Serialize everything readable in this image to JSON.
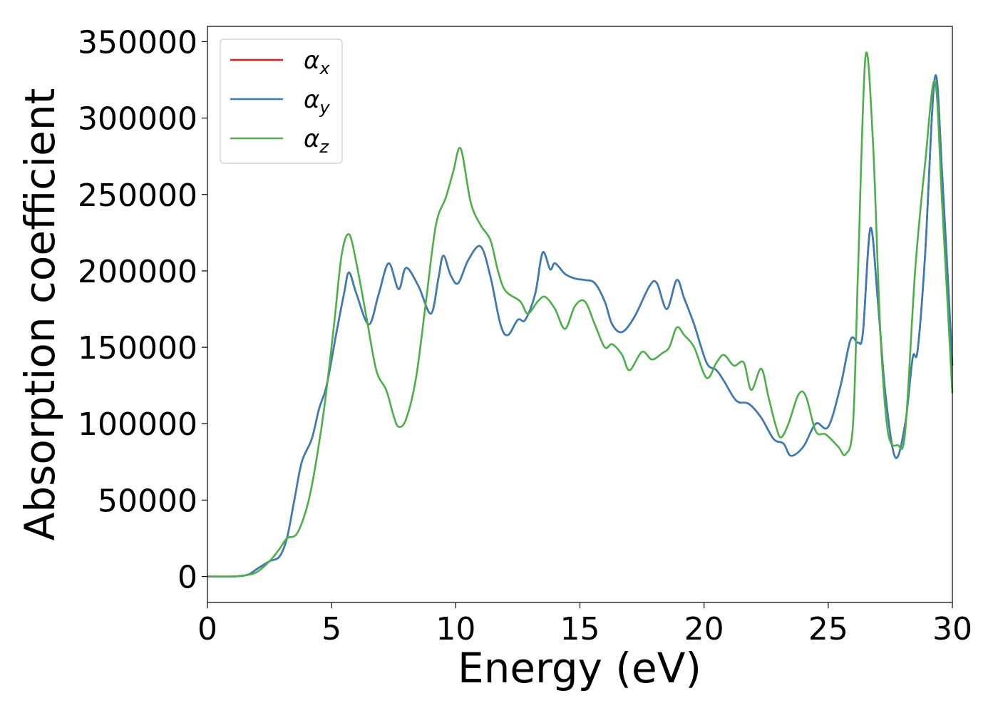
{
  "chart_data": {
    "type": "line",
    "xlabel": "Energy (eV)",
    "ylabel": "Absorption coefficient",
    "xlim": [
      0,
      30
    ],
    "ylim": [
      -17000,
      360000
    ],
    "xticks": [
      0,
      5,
      10,
      15,
      20,
      25,
      30
    ],
    "xtick_labels": [
      "0",
      "5",
      "10",
      "15",
      "20",
      "25",
      "30"
    ],
    "yticks": [
      0,
      50000,
      100000,
      150000,
      200000,
      250000,
      300000,
      350000
    ],
    "ytick_labels": [
      "0",
      "50000",
      "100000",
      "150000",
      "200000",
      "250000",
      "300000",
      "350000"
    ],
    "grid": false,
    "legend_position": "top-left",
    "series": [
      {
        "name": "α",
        "subscript": "x",
        "color": "#e41a1c",
        "points": [
          [
            0,
            0
          ],
          [
            1,
            0
          ],
          [
            1.6,
            1000
          ],
          [
            2,
            5000
          ],
          [
            2.5,
            10000
          ],
          [
            2.9,
            13000
          ],
          [
            3.2,
            25000
          ],
          [
            3.5,
            50000
          ],
          [
            3.8,
            75000
          ],
          [
            4.2,
            90000
          ],
          [
            4.5,
            110000
          ],
          [
            4.8,
            125000
          ],
          [
            5.2,
            160000
          ],
          [
            5.5,
            185000
          ],
          [
            5.7,
            199000
          ],
          [
            6,
            185000
          ],
          [
            6.5,
            165000
          ],
          [
            6.9,
            185000
          ],
          [
            7.3,
            205000
          ],
          [
            7.7,
            188000
          ],
          [
            8,
            202000
          ],
          [
            8.5,
            190000
          ],
          [
            9,
            172000
          ],
          [
            9.3,
            195000
          ],
          [
            9.5,
            210000
          ],
          [
            9.8,
            197000
          ],
          [
            10.1,
            192000
          ],
          [
            10.5,
            207000
          ],
          [
            11,
            216000
          ],
          [
            11.4,
            196000
          ],
          [
            11.8,
            165000
          ],
          [
            12.1,
            158000
          ],
          [
            12.5,
            168000
          ],
          [
            12.8,
            168000
          ],
          [
            13.2,
            185000
          ],
          [
            13.5,
            212000
          ],
          [
            13.8,
            201000
          ],
          [
            14,
            205000
          ],
          [
            14.4,
            198000
          ],
          [
            14.8,
            195000
          ],
          [
            15.2,
            194000
          ],
          [
            15.6,
            192000
          ],
          [
            16,
            180000
          ],
          [
            16.3,
            165000
          ],
          [
            16.7,
            160000
          ],
          [
            17.2,
            170000
          ],
          [
            17.8,
            190000
          ],
          [
            18.1,
            192000
          ],
          [
            18.5,
            175000
          ],
          [
            18.9,
            194000
          ],
          [
            19.2,
            182000
          ],
          [
            19.6,
            165000
          ],
          [
            20.1,
            140000
          ],
          [
            20.5,
            135000
          ],
          [
            20.8,
            128000
          ],
          [
            21.3,
            115000
          ],
          [
            21.8,
            113000
          ],
          [
            22.3,
            104000
          ],
          [
            22.8,
            90000
          ],
          [
            23.2,
            87000
          ],
          [
            23.5,
            79000
          ],
          [
            24,
            85000
          ],
          [
            24.5,
            100000
          ],
          [
            25,
            98000
          ],
          [
            25.5,
            125000
          ],
          [
            25.9,
            155000
          ],
          [
            26.2,
            153000
          ],
          [
            26.4,
            160000
          ],
          [
            26.7,
            228000
          ],
          [
            27,
            180000
          ],
          [
            27.3,
            120000
          ],
          [
            27.7,
            78000
          ],
          [
            28.1,
            100000
          ],
          [
            28.4,
            143000
          ],
          [
            28.6,
            148000
          ],
          [
            28.9,
            210000
          ],
          [
            29.3,
            327000
          ],
          [
            29.6,
            260000
          ],
          [
            30,
            138000
          ]
        ]
      },
      {
        "name": "α",
        "subscript": "y",
        "color": "#377eb8",
        "points": [
          [
            0,
            0
          ],
          [
            1,
            0
          ],
          [
            1.6,
            1000
          ],
          [
            2,
            5000
          ],
          [
            2.5,
            10000
          ],
          [
            2.9,
            13000
          ],
          [
            3.2,
            25000
          ],
          [
            3.5,
            50000
          ],
          [
            3.8,
            75000
          ],
          [
            4.2,
            90000
          ],
          [
            4.5,
            110000
          ],
          [
            4.8,
            125000
          ],
          [
            5.2,
            160000
          ],
          [
            5.5,
            185000
          ],
          [
            5.7,
            199000
          ],
          [
            6,
            185000
          ],
          [
            6.5,
            165000
          ],
          [
            6.9,
            185000
          ],
          [
            7.3,
            205000
          ],
          [
            7.7,
            188000
          ],
          [
            8,
            202000
          ],
          [
            8.5,
            190000
          ],
          [
            9,
            172000
          ],
          [
            9.3,
            195000
          ],
          [
            9.5,
            210000
          ],
          [
            9.8,
            197000
          ],
          [
            10.1,
            192000
          ],
          [
            10.5,
            207000
          ],
          [
            11,
            216000
          ],
          [
            11.4,
            196000
          ],
          [
            11.8,
            165000
          ],
          [
            12.1,
            158000
          ],
          [
            12.5,
            168000
          ],
          [
            12.8,
            168000
          ],
          [
            13.2,
            185000
          ],
          [
            13.5,
            212000
          ],
          [
            13.8,
            201000
          ],
          [
            14,
            205000
          ],
          [
            14.4,
            198000
          ],
          [
            14.8,
            195000
          ],
          [
            15.2,
            194000
          ],
          [
            15.6,
            192000
          ],
          [
            16,
            180000
          ],
          [
            16.3,
            165000
          ],
          [
            16.7,
            160000
          ],
          [
            17.2,
            170000
          ],
          [
            17.8,
            190000
          ],
          [
            18.1,
            192000
          ],
          [
            18.5,
            175000
          ],
          [
            18.9,
            194000
          ],
          [
            19.2,
            182000
          ],
          [
            19.6,
            165000
          ],
          [
            20.1,
            140000
          ],
          [
            20.5,
            135000
          ],
          [
            20.8,
            128000
          ],
          [
            21.3,
            115000
          ],
          [
            21.8,
            113000
          ],
          [
            22.3,
            104000
          ],
          [
            22.8,
            90000
          ],
          [
            23.2,
            87000
          ],
          [
            23.5,
            79000
          ],
          [
            24,
            85000
          ],
          [
            24.5,
            100000
          ],
          [
            25,
            98000
          ],
          [
            25.5,
            125000
          ],
          [
            25.9,
            155000
          ],
          [
            26.2,
            153000
          ],
          [
            26.4,
            160000
          ],
          [
            26.7,
            228000
          ],
          [
            27,
            180000
          ],
          [
            27.3,
            120000
          ],
          [
            27.7,
            78000
          ],
          [
            28.1,
            100000
          ],
          [
            28.4,
            143000
          ],
          [
            28.6,
            148000
          ],
          [
            28.9,
            210000
          ],
          [
            29.3,
            327000
          ],
          [
            29.6,
            260000
          ],
          [
            30,
            138000
          ]
        ]
      },
      {
        "name": "α",
        "subscript": "z",
        "color": "#4daf4a",
        "points": [
          [
            0,
            0
          ],
          [
            1,
            0
          ],
          [
            1.6,
            1000
          ],
          [
            2,
            3000
          ],
          [
            2.5,
            10000
          ],
          [
            2.9,
            18000
          ],
          [
            3.2,
            25000
          ],
          [
            3.6,
            28000
          ],
          [
            4,
            45000
          ],
          [
            4.3,
            68000
          ],
          [
            4.7,
            110000
          ],
          [
            5.1,
            165000
          ],
          [
            5.4,
            210000
          ],
          [
            5.7,
            224000
          ],
          [
            6,
            205000
          ],
          [
            6.4,
            170000
          ],
          [
            6.8,
            135000
          ],
          [
            7.2,
            122000
          ],
          [
            7.5,
            105000
          ],
          [
            7.7,
            98000
          ],
          [
            8,
            103000
          ],
          [
            8.4,
            130000
          ],
          [
            8.8,
            180000
          ],
          [
            9.2,
            230000
          ],
          [
            9.6,
            248000
          ],
          [
            9.9,
            265000
          ],
          [
            10.2,
            280000
          ],
          [
            10.6,
            245000
          ],
          [
            11,
            230000
          ],
          [
            11.4,
            220000
          ],
          [
            11.7,
            200000
          ],
          [
            12,
            187000
          ],
          [
            12.6,
            180000
          ],
          [
            12.9,
            172000
          ],
          [
            13.3,
            180000
          ],
          [
            13.6,
            183000
          ],
          [
            14,
            175000
          ],
          [
            14.4,
            162000
          ],
          [
            14.8,
            177000
          ],
          [
            15.2,
            180000
          ],
          [
            15.6,
            165000
          ],
          [
            16,
            150000
          ],
          [
            16.3,
            152000
          ],
          [
            16.7,
            145000
          ],
          [
            17,
            135000
          ],
          [
            17.5,
            147000
          ],
          [
            17.9,
            142000
          ],
          [
            18.3,
            146000
          ],
          [
            18.6,
            150000
          ],
          [
            18.9,
            163000
          ],
          [
            19.2,
            158000
          ],
          [
            19.6,
            150000
          ],
          [
            20.1,
            130000
          ],
          [
            20.5,
            140000
          ],
          [
            20.8,
            145000
          ],
          [
            21.2,
            138000
          ],
          [
            21.6,
            140000
          ],
          [
            21.9,
            122000
          ],
          [
            22.3,
            136000
          ],
          [
            22.6,
            117000
          ],
          [
            22.9,
            98000
          ],
          [
            23.1,
            91000
          ],
          [
            23.4,
            100000
          ],
          [
            23.8,
            119000
          ],
          [
            24.1,
            118000
          ],
          [
            24.5,
            95000
          ],
          [
            24.9,
            93000
          ],
          [
            25.4,
            85000
          ],
          [
            25.7,
            80000
          ],
          [
            26,
            100000
          ],
          [
            26.2,
            200000
          ],
          [
            26.5,
            340000
          ],
          [
            26.8,
            285000
          ],
          [
            27.1,
            160000
          ],
          [
            27.4,
            95000
          ],
          [
            27.8,
            86000
          ],
          [
            28.1,
            95000
          ],
          [
            28.5,
            200000
          ],
          [
            28.9,
            270000
          ],
          [
            29.3,
            324000
          ],
          [
            29.6,
            240000
          ],
          [
            30,
            120000
          ]
        ]
      }
    ]
  }
}
